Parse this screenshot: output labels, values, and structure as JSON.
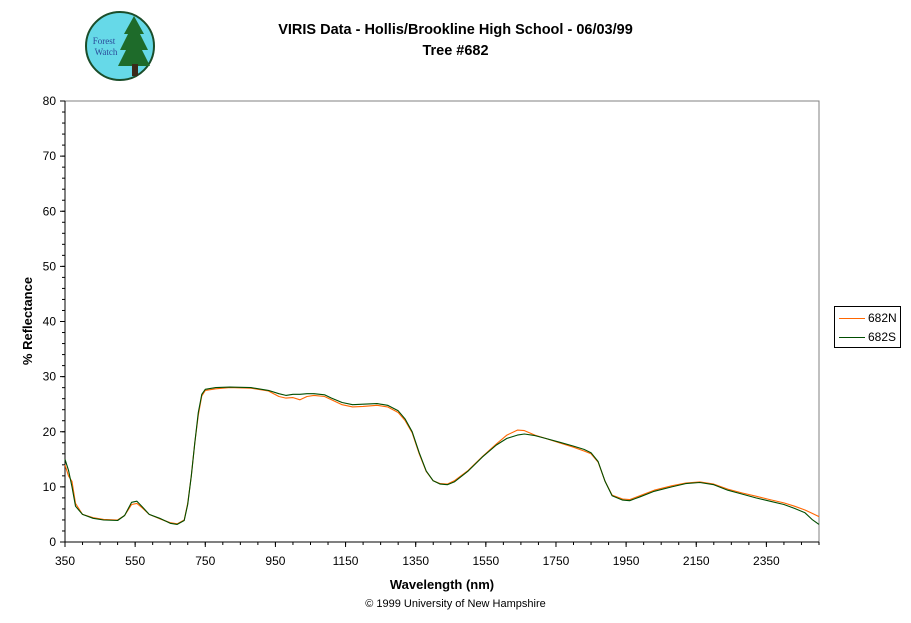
{
  "header": {
    "title_line1": "VIRIS Data - Hollis/Brookline High School - 06/03/99",
    "title_line2": "Tree #682"
  },
  "logo": {
    "text_line1": "Forest",
    "text_line2": "Watch",
    "colors": {
      "circle": "#66d9e8",
      "tree": "#1e6b2a",
      "text": "#2a4a9a"
    }
  },
  "footer": {
    "copyright": "© 1999 University of New Hampshire"
  },
  "chart_data": {
    "type": "line",
    "xlabel": "Wavelength (nm)",
    "ylabel": "% Reflectance",
    "xlim": [
      350,
      2500
    ],
    "ylim": [
      0,
      80
    ],
    "xticks": [
      "350",
      "550",
      "750",
      "950",
      "1150",
      "1350",
      "1550",
      "1750",
      "1950",
      "2150",
      "2350"
    ],
    "yticks": [
      "0",
      "10",
      "20",
      "30",
      "40",
      "50",
      "60",
      "70",
      "80"
    ],
    "grid": false,
    "legend": "right",
    "series": [
      {
        "name": "682N",
        "color": "#ff6600",
        "points": [
          [
            350,
            14
          ],
          [
            360,
            12
          ],
          [
            370,
            11
          ],
          [
            380,
            7
          ],
          [
            400,
            5
          ],
          [
            430,
            4.4
          ],
          [
            460,
            4.1
          ],
          [
            500,
            4
          ],
          [
            520,
            4.8
          ],
          [
            540,
            6.8
          ],
          [
            555,
            7
          ],
          [
            570,
            6.2
          ],
          [
            590,
            5
          ],
          [
            620,
            4.2
          ],
          [
            650,
            3.5
          ],
          [
            670,
            3.3
          ],
          [
            690,
            4
          ],
          [
            700,
            7
          ],
          [
            710,
            12
          ],
          [
            720,
            18
          ],
          [
            730,
            23
          ],
          [
            740,
            26.5
          ],
          [
            750,
            27.5
          ],
          [
            780,
            27.8
          ],
          [
            820,
            28
          ],
          [
            880,
            27.9
          ],
          [
            930,
            27.4
          ],
          [
            960,
            26.4
          ],
          [
            980,
            26.1
          ],
          [
            1000,
            26.2
          ],
          [
            1020,
            25.8
          ],
          [
            1040,
            26.4
          ],
          [
            1060,
            26.6
          ],
          [
            1090,
            26.4
          ],
          [
            1110,
            25.8
          ],
          [
            1140,
            24.9
          ],
          [
            1170,
            24.5
          ],
          [
            1200,
            24.6
          ],
          [
            1240,
            24.8
          ],
          [
            1270,
            24.5
          ],
          [
            1300,
            23.5
          ],
          [
            1320,
            22
          ],
          [
            1340,
            19.8
          ],
          [
            1360,
            16
          ],
          [
            1380,
            12.8
          ],
          [
            1400,
            11.1
          ],
          [
            1420,
            10.6
          ],
          [
            1440,
            10.5
          ],
          [
            1460,
            11.1
          ],
          [
            1500,
            13
          ],
          [
            1540,
            15.5
          ],
          [
            1580,
            17.8
          ],
          [
            1610,
            19.4
          ],
          [
            1640,
            20.3
          ],
          [
            1660,
            20.2
          ],
          [
            1690,
            19.4
          ],
          [
            1720,
            18.8
          ],
          [
            1760,
            18
          ],
          [
            1800,
            17.2
          ],
          [
            1830,
            16.5
          ],
          [
            1850,
            16
          ],
          [
            1870,
            14.5
          ],
          [
            1890,
            11
          ],
          [
            1910,
            8.5
          ],
          [
            1940,
            7.8
          ],
          [
            1960,
            7.7
          ],
          [
            1990,
            8.4
          ],
          [
            2030,
            9.4
          ],
          [
            2080,
            10.2
          ],
          [
            2120,
            10.7
          ],
          [
            2160,
            10.9
          ],
          [
            2200,
            10.5
          ],
          [
            2240,
            9.6
          ],
          [
            2280,
            8.9
          ],
          [
            2320,
            8.3
          ],
          [
            2360,
            7.7
          ],
          [
            2400,
            7.1
          ],
          [
            2430,
            6.5
          ],
          [
            2460,
            5.8
          ],
          [
            2480,
            5.2
          ],
          [
            2500,
            4.6
          ]
        ]
      },
      {
        "name": "682S",
        "color": "#004d00",
        "points": [
          [
            350,
            15
          ],
          [
            360,
            13
          ],
          [
            370,
            10
          ],
          [
            380,
            6.5
          ],
          [
            400,
            5
          ],
          [
            430,
            4.3
          ],
          [
            460,
            4
          ],
          [
            500,
            3.9
          ],
          [
            520,
            4.8
          ],
          [
            540,
            7.2
          ],
          [
            555,
            7.4
          ],
          [
            570,
            6.4
          ],
          [
            590,
            5
          ],
          [
            620,
            4.3
          ],
          [
            650,
            3.4
          ],
          [
            670,
            3.2
          ],
          [
            690,
            3.9
          ],
          [
            700,
            6.8
          ],
          [
            710,
            12
          ],
          [
            720,
            18
          ],
          [
            730,
            23.5
          ],
          [
            740,
            26.8
          ],
          [
            750,
            27.7
          ],
          [
            780,
            28
          ],
          [
            820,
            28.1
          ],
          [
            880,
            28
          ],
          [
            930,
            27.5
          ],
          [
            960,
            26.9
          ],
          [
            980,
            26.6
          ],
          [
            1000,
            26.8
          ],
          [
            1020,
            26.8
          ],
          [
            1040,
            26.9
          ],
          [
            1060,
            26.9
          ],
          [
            1090,
            26.7
          ],
          [
            1110,
            26.1
          ],
          [
            1140,
            25.3
          ],
          [
            1170,
            24.9
          ],
          [
            1200,
            25
          ],
          [
            1240,
            25.1
          ],
          [
            1270,
            24.8
          ],
          [
            1300,
            23.8
          ],
          [
            1320,
            22.3
          ],
          [
            1340,
            20
          ],
          [
            1360,
            16.2
          ],
          [
            1380,
            12.9
          ],
          [
            1400,
            11.1
          ],
          [
            1420,
            10.5
          ],
          [
            1440,
            10.4
          ],
          [
            1460,
            10.9
          ],
          [
            1500,
            12.9
          ],
          [
            1540,
            15.4
          ],
          [
            1580,
            17.6
          ],
          [
            1610,
            18.8
          ],
          [
            1640,
            19.4
          ],
          [
            1660,
            19.6
          ],
          [
            1690,
            19.3
          ],
          [
            1720,
            18.8
          ],
          [
            1760,
            18.1
          ],
          [
            1800,
            17.4
          ],
          [
            1830,
            16.8
          ],
          [
            1850,
            16.2
          ],
          [
            1870,
            14.6
          ],
          [
            1890,
            11
          ],
          [
            1910,
            8.4
          ],
          [
            1940,
            7.6
          ],
          [
            1960,
            7.5
          ],
          [
            1990,
            8.2
          ],
          [
            2030,
            9.2
          ],
          [
            2080,
            10
          ],
          [
            2120,
            10.6
          ],
          [
            2160,
            10.8
          ],
          [
            2200,
            10.4
          ],
          [
            2240,
            9.4
          ],
          [
            2280,
            8.7
          ],
          [
            2320,
            8
          ],
          [
            2360,
            7.4
          ],
          [
            2400,
            6.8
          ],
          [
            2430,
            6.1
          ],
          [
            2460,
            5.3
          ],
          [
            2480,
            4.1
          ],
          [
            2500,
            3.2
          ]
        ]
      }
    ]
  }
}
